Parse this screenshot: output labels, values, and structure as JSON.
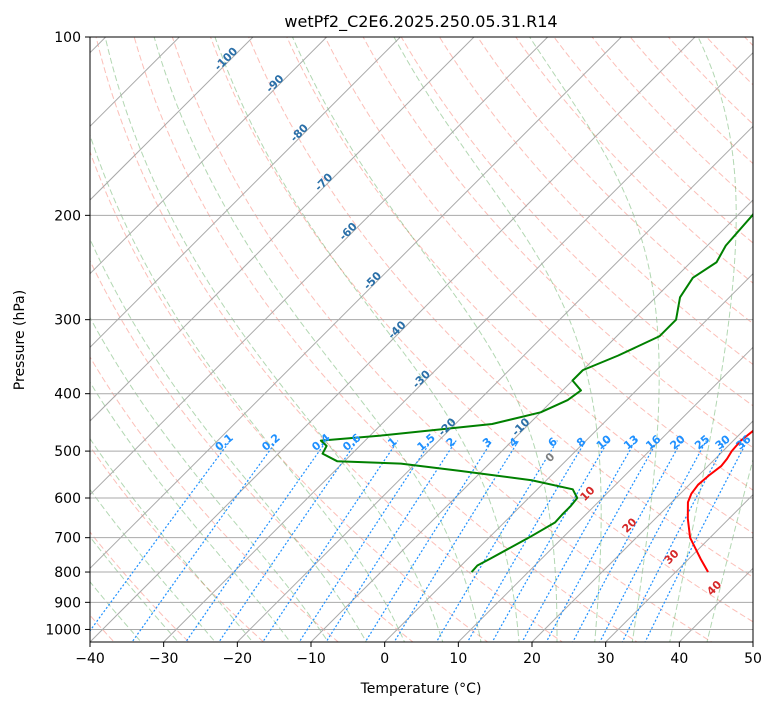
{
  "chart_data": {
    "type": "line",
    "subtype": "skew-t log-p diagram",
    "title": "wetPf2_C2E6.2025.250.05.31.R14",
    "xlabel": "Temperature (°C)",
    "ylabel": "Pressure (hPa)",
    "xlim": [
      -40,
      50
    ],
    "ylim": [
      1050,
      100
    ],
    "x_ticks": [
      -40,
      -30,
      -20,
      -10,
      0,
      10,
      20,
      30,
      40,
      50
    ],
    "x_tick_labels": [
      "−40",
      "−30",
      "−20",
      "−10",
      "0",
      "10",
      "20",
      "30",
      "40",
      "50"
    ],
    "y_ticks": [
      100,
      200,
      300,
      400,
      500,
      600,
      700,
      800,
      900,
      1000
    ],
    "y_tick_labels": [
      "100",
      "200",
      "300",
      "400",
      "500",
      "600",
      "700",
      "800",
      "900",
      "1000"
    ],
    "grid": true,
    "colors": {
      "temperature": "#ff0000",
      "dewpoint": "#008000",
      "isotherm": "#a9a9a9",
      "dry_adiabat": "#fa8072",
      "moist_adiabat": "#228b22",
      "mixing_ratio": "#1e90ff",
      "isotherm_label": "#2a6fa8",
      "red_label": "#d62728",
      "zero_label": "#808080"
    },
    "series": [
      {
        "name": "Temperature",
        "points": [
          [
            800,
            34.4
          ],
          [
            760,
            31.6
          ],
          [
            700,
            27.3
          ],
          [
            650,
            24.4
          ],
          [
            610,
            22.2
          ],
          [
            590,
            21.5
          ],
          [
            570,
            21.2
          ],
          [
            550,
            21.4
          ],
          [
            530,
            21.8
          ],
          [
            515,
            21.6
          ],
          [
            500,
            21.2
          ],
          [
            480,
            21.0
          ],
          [
            460,
            21.4
          ],
          [
            430,
            21.4
          ],
          [
            400,
            20.1
          ],
          [
            370,
            17.5
          ],
          [
            340,
            14.0
          ],
          [
            310,
            10.0
          ],
          [
            280,
            6.1
          ],
          [
            250,
            2.5
          ],
          [
            220,
            -2.3
          ],
          [
            190,
            -7.1
          ],
          [
            160,
            -11.5
          ],
          [
            130,
            -18.0
          ],
          [
            110,
            -24.0
          ],
          [
            100,
            -27.0
          ]
        ]
      },
      {
        "name": "Dewpoint",
        "points": [
          [
            800,
            2.3
          ],
          [
            780,
            2.2
          ],
          [
            760,
            3.0
          ],
          [
            700,
            5.4
          ],
          [
            660,
            6.9
          ],
          [
            640,
            6.8
          ],
          [
            620,
            6.8
          ],
          [
            600,
            6.6
          ],
          [
            580,
            4.8
          ],
          [
            560,
            -2.0
          ],
          [
            540,
            -13.0
          ],
          [
            525,
            -22.0
          ],
          [
            520,
            -31.0
          ],
          [
            505,
            -34.0
          ],
          [
            490,
            -34.5
          ],
          [
            480,
            -36.0
          ],
          [
            470,
            -28.0
          ],
          [
            450,
            -15.0
          ],
          [
            430,
            -10.0
          ],
          [
            410,
            -8.0
          ],
          [
            395,
            -7.5
          ],
          [
            380,
            -10.0
          ],
          [
            365,
            -10.0
          ],
          [
            345,
            -7.2
          ],
          [
            320,
            -4.2
          ],
          [
            300,
            -4.2
          ],
          [
            275,
            -6.7
          ],
          [
            255,
            -7.6
          ],
          [
            240,
            -6.5
          ],
          [
            225,
            -7.5
          ],
          [
            200,
            -8.0
          ],
          [
            175,
            -9.8
          ],
          [
            150,
            -11.0
          ],
          [
            130,
            -13.5
          ],
          [
            120,
            -14.0
          ],
          [
            110,
            -15.5
          ],
          [
            100,
            -19.0
          ]
        ]
      }
    ],
    "isotherm_labels": [
      {
        "t": -100,
        "text": "-100"
      },
      {
        "t": -90,
        "text": "-90"
      },
      {
        "t": -80,
        "text": "-80"
      },
      {
        "t": -70,
        "text": "-70"
      },
      {
        "t": -60,
        "text": "-60"
      },
      {
        "t": -50,
        "text": "-50"
      },
      {
        "t": -40,
        "text": "-40"
      },
      {
        "t": -30,
        "text": "-30"
      },
      {
        "t": -20,
        "text": "-20"
      },
      {
        "t": -10,
        "text": "-10"
      }
    ],
    "mixing_ratio_labels": [
      {
        "w": 0.1,
        "text": "0.1"
      },
      {
        "w": 0.2,
        "text": "0.2"
      },
      {
        "w": 0.4,
        "text": "0.4"
      },
      {
        "w": 0.6,
        "text": "0.6"
      },
      {
        "w": 1,
        "text": "1"
      },
      {
        "w": 1.5,
        "text": "1.5"
      },
      {
        "w": 2,
        "text": "2"
      },
      {
        "w": 3,
        "text": "3"
      },
      {
        "w": 4,
        "text": "4"
      },
      {
        "w": 6,
        "text": "6"
      },
      {
        "w": 8,
        "text": "8"
      },
      {
        "w": 10,
        "text": "10"
      },
      {
        "w": 13,
        "text": "13"
      },
      {
        "w": 16,
        "text": "16"
      },
      {
        "w": 20,
        "text": "20"
      },
      {
        "w": 25,
        "text": "25"
      },
      {
        "w": 30,
        "text": "30"
      },
      {
        "w": 36,
        "text": "36"
      }
    ],
    "red_isotherm_labels": [
      {
        "t": 0,
        "text": "0"
      },
      {
        "t": 10,
        "text": "10"
      },
      {
        "t": 20,
        "text": "20"
      },
      {
        "t": 30,
        "text": "30"
      },
      {
        "t": 40,
        "text": "40"
      }
    ]
  }
}
